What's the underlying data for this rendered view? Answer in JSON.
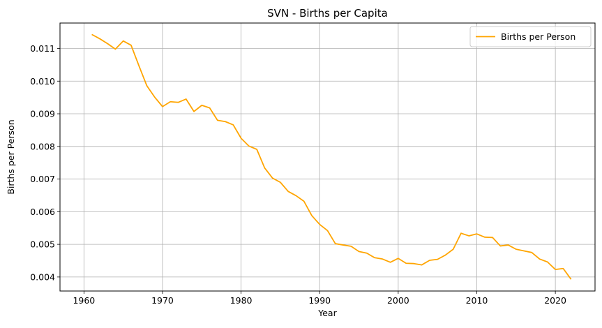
{
  "chart_data": {
    "type": "line",
    "title": "SVN - Births per Capita",
    "xlabel": "Year",
    "ylabel": "Births per Person",
    "xlim": [
      1956.95,
      2025.05
    ],
    "ylim": [
      0.00357,
      0.01178
    ],
    "xticks": [
      1960,
      1970,
      1980,
      1990,
      2000,
      2010,
      2020
    ],
    "xtick_labels": [
      "1960",
      "1970",
      "1980",
      "1990",
      "2000",
      "2010",
      "2020"
    ],
    "yticks": [
      0.004,
      0.005,
      0.006,
      0.007,
      0.008,
      0.009,
      0.01,
      0.011
    ],
    "ytick_labels": [
      "0.004",
      "0.005",
      "0.006",
      "0.007",
      "0.008",
      "0.009",
      "0.010",
      "0.011"
    ],
    "grid": true,
    "legend_position": "top-right",
    "series": [
      {
        "name": "Births per Person",
        "color": "#ffa500",
        "x": [
          1961,
          1962,
          1963,
          1964,
          1965,
          1966,
          1967,
          1968,
          1969,
          1970,
          1971,
          1972,
          1973,
          1974,
          1975,
          1976,
          1977,
          1978,
          1979,
          1980,
          1981,
          1982,
          1983,
          1984,
          1985,
          1986,
          1987,
          1988,
          1989,
          1990,
          1991,
          1992,
          1993,
          1994,
          1995,
          1996,
          1997,
          1998,
          1999,
          2000,
          2001,
          2002,
          2003,
          2004,
          2005,
          2006,
          2007,
          2008,
          2009,
          2010,
          2011,
          2012,
          2013,
          2014,
          2015,
          2016,
          2017,
          2018,
          2019,
          2020,
          2021,
          2022
        ],
        "values": [
          0.01143,
          0.0113,
          0.01115,
          0.01098,
          0.01123,
          0.0111,
          0.01047,
          0.00986,
          0.00951,
          0.00922,
          0.00937,
          0.00935,
          0.00945,
          0.00907,
          0.00926,
          0.00918,
          0.0088,
          0.00876,
          0.00866,
          0.00825,
          0.00801,
          0.00791,
          0.00734,
          0.00703,
          0.0069,
          0.00662,
          0.00649,
          0.00632,
          0.00588,
          0.00561,
          0.00542,
          0.00502,
          0.00498,
          0.00494,
          0.00478,
          0.00473,
          0.00459,
          0.00455,
          0.00445,
          0.00457,
          0.00442,
          0.00441,
          0.00437,
          0.00451,
          0.00454,
          0.00467,
          0.00485,
          0.00534,
          0.00526,
          0.00532,
          0.00522,
          0.00521,
          0.00495,
          0.00498,
          0.00485,
          0.0048,
          0.00475,
          0.00455,
          0.00446,
          0.00423,
          0.00426,
          0.00393
        ]
      }
    ]
  }
}
